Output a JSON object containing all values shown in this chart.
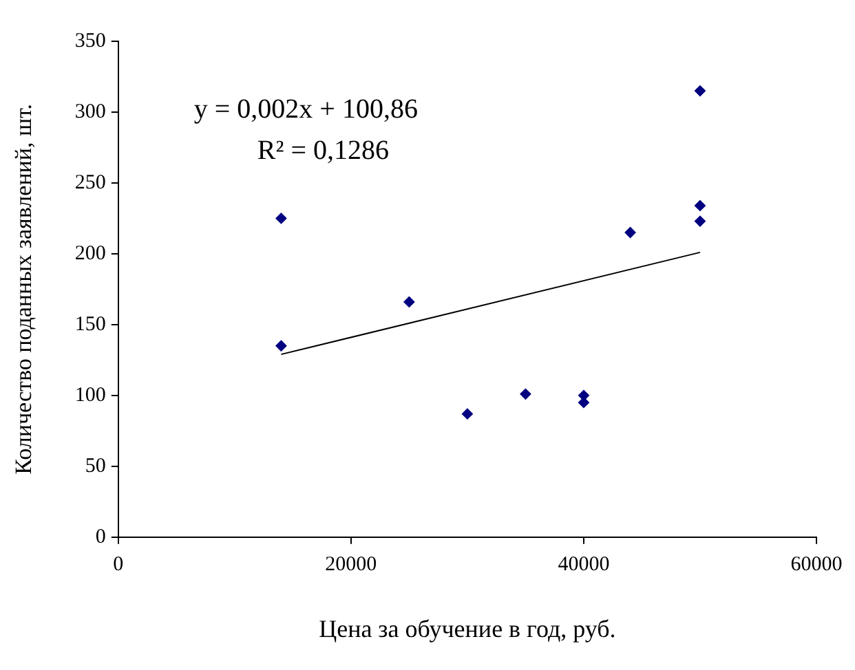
{
  "chart_data": {
    "type": "scatter",
    "xlabel": "Цена за обучение в год, руб.",
    "ylabel": "Количество поданных заявлений, шт.",
    "annotations": [
      "y = 0,002x + 100,86",
      "R² = 0,1286"
    ],
    "xlim": [
      0,
      60000
    ],
    "xticks": [
      0,
      20000,
      40000,
      60000
    ],
    "ylim": [
      0,
      350
    ],
    "yticks": [
      0,
      50,
      100,
      150,
      200,
      250,
      300,
      350
    ],
    "grid": false,
    "legend": false,
    "series": [
      {
        "marker": "diamond",
        "color": "#000080",
        "x": [
          14000,
          14000,
          25000,
          30000,
          35000,
          40000,
          40000,
          44000,
          50000,
          50000,
          50000
        ],
        "values": [
          225,
          135,
          166,
          87,
          101,
          100,
          95,
          215,
          315,
          234,
          223
        ]
      },
      {
        "type": "line",
        "marker": "none",
        "color": "#000000",
        "x": [
          14000,
          50000
        ],
        "values": [
          129,
          201
        ]
      }
    ]
  }
}
